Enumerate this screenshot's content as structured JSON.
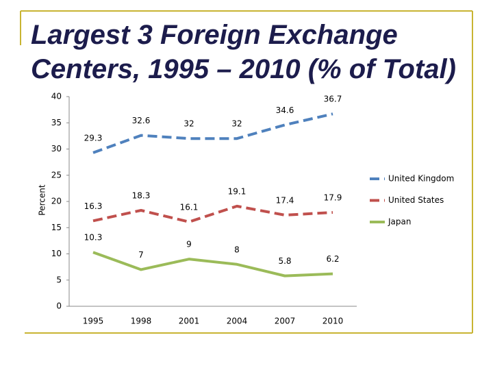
{
  "chart_data": {
    "type": "line",
    "title": "Largest 3 Foreign Exchange Centers, 1995 – 2010 (% of Total)",
    "y_label": "Percent",
    "categories": [
      "1995",
      "1998",
      "2001",
      "2004",
      "2007",
      "2010"
    ],
    "series": [
      {
        "name": "United Kingdom",
        "color": "#4f81bd",
        "dashed": true,
        "values": [
          29.3,
          32.6,
          32,
          32,
          34.6,
          36.7
        ]
      },
      {
        "name": "United States",
        "color": "#c0504d",
        "dashed": true,
        "values": [
          16.3,
          18.3,
          16.1,
          19.1,
          17.4,
          17.9
        ]
      },
      {
        "name": "Japan",
        "color": "#9bbb59",
        "dashed": false,
        "values": [
          10.3,
          7,
          9,
          8,
          5.8,
          6.2
        ]
      }
    ],
    "ylim": [
      0,
      40
    ],
    "yticks": [
      0,
      5,
      10,
      15,
      20,
      25,
      30,
      35,
      40
    ],
    "grid": false,
    "legend": "right"
  }
}
